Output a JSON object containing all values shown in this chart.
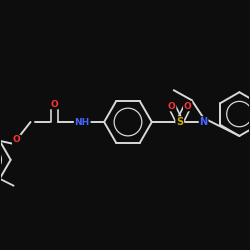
{
  "bg_color": "#0d0d0d",
  "bond_color": "#d8d8d8",
  "atom_colors": {
    "N": "#4466ff",
    "O": "#ff3333",
    "S": "#ccaa00",
    "C": "#d8d8d8"
  },
  "fig_size": [
    2.5,
    2.5
  ],
  "dpi": 100
}
